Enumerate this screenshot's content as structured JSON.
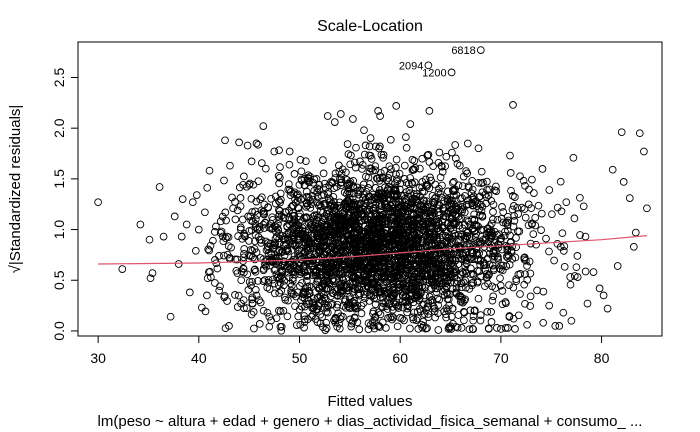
{
  "chart_data": {
    "type": "scatter",
    "title": "Scale-Location",
    "xlabel": "Fitted values",
    "ylabel": "√|Standardized residuals|",
    "sublabel": "lm(peso ~ altura + edad + genero + dias_actividad_fisica_semanal + consumo_ ...",
    "xlim": [
      28,
      86
    ],
    "ylim": [
      -0.05,
      2.85
    ],
    "x_ticks": [
      30,
      40,
      50,
      60,
      70,
      80
    ],
    "y_ticks": [
      0.0,
      0.5,
      1.0,
      1.5,
      2.0,
      2.5
    ],
    "x_tick_labels": [
      "30",
      "40",
      "50",
      "60",
      "70",
      "80"
    ],
    "y_tick_labels": [
      "0.0",
      "0.5",
      "1.0",
      "1.5",
      "2.0",
      "2.5"
    ],
    "grid": false,
    "point_color": "#000000",
    "smooth_color": "#DF536B",
    "smooth_line": {
      "x": [
        30,
        40,
        50,
        55,
        60,
        65,
        70,
        75,
        80,
        84.5
      ],
      "y": [
        0.66,
        0.67,
        0.7,
        0.73,
        0.77,
        0.81,
        0.84,
        0.87,
        0.9,
        0.94
      ]
    },
    "labeled_points": [
      {
        "label": "6818",
        "x": 68.0,
        "y": 2.77
      },
      {
        "label": "2094",
        "x": 62.8,
        "y": 2.62
      },
      {
        "label": "1200",
        "x": 65.1,
        "y": 2.55
      }
    ],
    "outer_points": {
      "x": [
        30.0,
        32.4,
        34.2,
        35.1,
        35.2,
        35.4,
        36.1,
        36.5,
        37.2,
        37.6,
        38.0,
        38.4,
        38.8,
        39.1,
        39.4,
        39.7,
        40.0,
        40.3,
        40.6,
        41.0,
        41.4,
        41.7,
        42.1,
        42.6,
        43.0,
        43.4,
        44.0,
        44.4,
        45.3,
        46.4,
        47.5,
        48.4,
        49.0,
        45.0,
        47.0,
        48.0,
        44.2,
        43.1,
        42.0,
        40.8,
        39.8,
        38.3,
        61.8,
        64.8,
        66.1,
        67.2,
        68.8,
        69.6,
        70.0,
        70.7,
        71.4,
        72.6,
        74.2,
        75.4,
        76.2,
        77.0,
        77.6,
        78.4,
        79.2,
        79.8,
        80.6,
        81.1,
        81.6,
        82.2,
        82.8,
        83.2,
        83.8,
        84.2,
        84.5,
        83.4,
        82.0,
        80.2,
        78.6,
        77.3,
        76.5,
        75.8,
        74.8,
        73.6,
        72.4,
        71.2,
        52.8,
        54.1,
        55.3,
        57.8,
        59.6,
        61.0,
        62.9,
        58.0,
        56.4,
        53.5
      ],
      "y": [
        1.27,
        0.61,
        1.05,
        0.9,
        0.52,
        0.57,
        1.42,
        0.93,
        0.14,
        1.13,
        0.66,
        1.3,
        1.05,
        0.38,
        1.27,
        0.79,
        1.0,
        0.23,
        1.17,
        0.58,
        0.89,
        1.03,
        0.44,
        1.88,
        0.05,
        1.21,
        1.86,
        0.69,
        0.33,
        2.02,
        1.77,
        0.2,
        1.64,
        1.44,
        0.14,
        1.1,
        0.27,
        1.63,
        0.74,
        0.35,
        1.34,
        0.93,
        0.02,
        0.02,
        0.03,
        0.02,
        0.02,
        0.03,
        0.02,
        0.03,
        0.02,
        0.06,
        0.08,
        0.05,
        0.18,
        0.1,
        0.74,
        0.93,
        0.58,
        0.42,
        0.22,
        1.59,
        0.64,
        1.47,
        1.31,
        0.83,
        1.95,
        1.77,
        1.21,
        0.97,
        1.96,
        0.35,
        0.27,
        1.11,
        1.27,
        0.05,
        0.25,
        0.4,
        0.56,
        2.23,
        2.12,
        2.14,
        2.09,
        2.17,
        2.22,
        2.04,
        2.17,
        2.12,
        1.98,
        2.06
      ]
    },
    "cloud": {
      "description": "",
      "n": 3200,
      "x_center": 58,
      "x_spread": 7,
      "x_range": [
        40,
        79
      ],
      "y_center": 0.84,
      "y_spread": 0.38,
      "y_range": [
        0.0,
        1.95
      ]
    }
  }
}
